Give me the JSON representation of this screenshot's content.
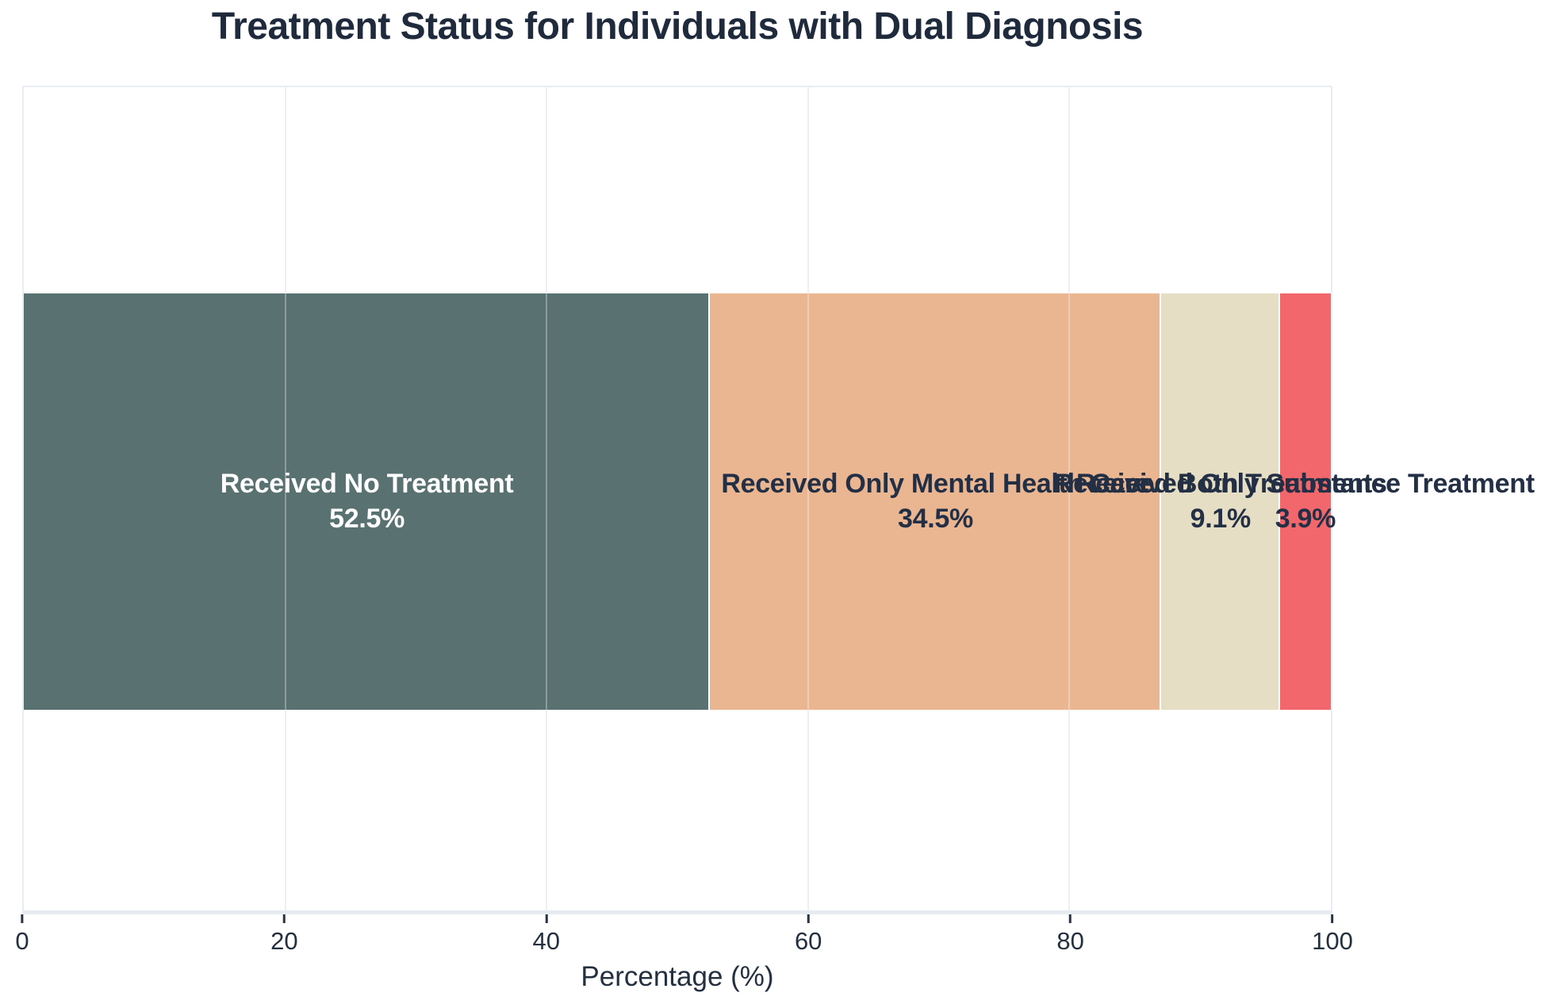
{
  "chart_data": {
    "type": "bar",
    "variant": "horizontal-stacked",
    "title": "Treatment Status for Individuals with Dual Diagnosis",
    "xlabel": "Percentage (%)",
    "xlim": [
      0,
      100
    ],
    "x_ticks": [
      0,
      20,
      40,
      60,
      80,
      100
    ],
    "grid": "vertical light gridlines on",
    "legend": "none (labels drawn on segments)",
    "segments": [
      {
        "label": "Received No Treatment",
        "value": 52.5,
        "pct": "52.5%",
        "color": "#5a7171",
        "text_color": "#ffffff"
      },
      {
        "label": "Received Only Mental Health Care",
        "value": 34.5,
        "pct": "34.5%",
        "color": "#e9b691",
        "text_color": "#232f45"
      },
      {
        "label": "Received Both Treatments",
        "value": 9.1,
        "pct": "9.1%",
        "color": "#e6dec4",
        "text_color": "#232f45"
      },
      {
        "label": "Received Only Substance Treatment",
        "value": 3.9,
        "pct": "3.9%",
        "color": "#f2676b",
        "text_color": "#232f45"
      }
    ]
  },
  "style": {
    "background": "#ffffff",
    "title_color": "#1f2a3c",
    "axis_text_color": "#242f3f",
    "plot_border_color": "#e9edf3",
    "gridline_color": "#eceff4",
    "segment_gap_color": "#ffffff"
  }
}
